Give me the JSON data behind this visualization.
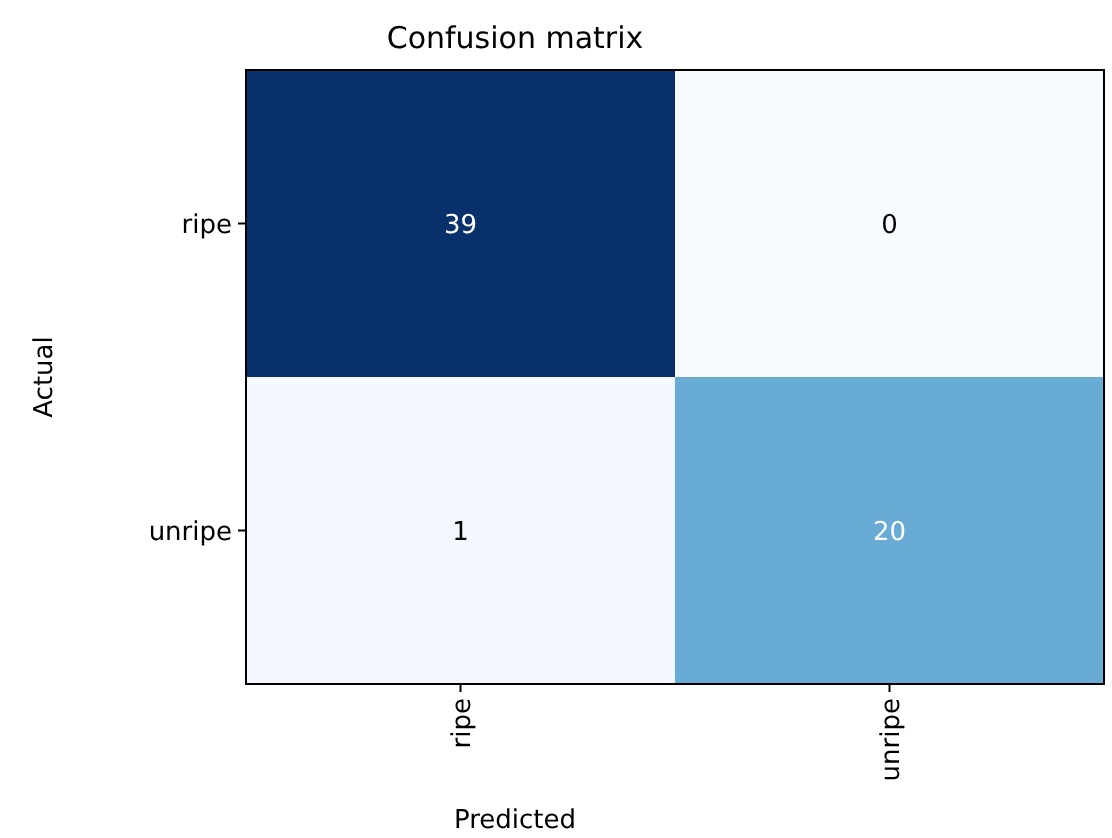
{
  "chart_data": {
    "type": "heatmap",
    "title": "Confusion matrix",
    "xlabel": "Predicted",
    "ylabel": "Actual",
    "categories": [
      "ripe",
      "unripe"
    ],
    "y_categories": [
      "ripe",
      "unripe"
    ],
    "cells": [
      [
        39,
        0
      ],
      [
        1,
        20
      ]
    ],
    "data_labels": true
  }
}
